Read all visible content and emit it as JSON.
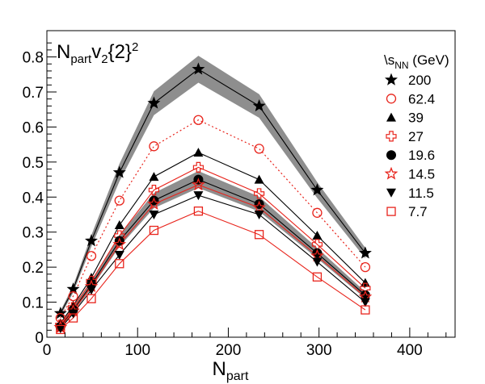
{
  "chart_data": {
    "type": "line",
    "title": "N_part v_2{2}^2",
    "xlabel": "N_part",
    "ylabel": "",
    "xlim": [
      0,
      450
    ],
    "ylim": [
      0,
      0.875
    ],
    "x_ticks": [
      0,
      100,
      200,
      300,
      400
    ],
    "y_ticks": [
      0,
      0.1,
      0.2,
      0.3,
      0.4,
      0.5,
      0.6,
      0.7,
      0.8
    ],
    "x_tick_labels": [
      "0",
      "100",
      "200",
      "300",
      "400"
    ],
    "y_tick_labels": [
      "0",
      "0.1",
      "0.2",
      "0.3",
      "0.4",
      "0.5",
      "0.6",
      "0.7",
      "0.8"
    ],
    "grid": false,
    "legend_title": "\\s_NN (GeV)",
    "legend_position": "top-right",
    "x": [
      15,
      29,
      49,
      80,
      118,
      167,
      234,
      298,
      351
    ],
    "series": [
      {
        "name": "200",
        "color": "#000000",
        "marker": "star-filled",
        "line": "solid",
        "band": true,
        "values": [
          0.068,
          0.137,
          0.275,
          0.47,
          0.668,
          0.765,
          0.66,
          0.42,
          0.24
        ]
      },
      {
        "name": "62.4",
        "color": "#e8241c",
        "marker": "circle-open",
        "line": "dotted",
        "band": false,
        "values": [
          0.055,
          0.117,
          0.232,
          0.39,
          0.545,
          0.62,
          0.538,
          0.355,
          0.2
        ]
      },
      {
        "name": "39",
        "color": "#000000",
        "marker": "triangle-up-filled",
        "line": "solid",
        "band": false,
        "values": [
          0.04,
          0.09,
          0.17,
          0.32,
          0.458,
          0.527,
          0.45,
          0.29,
          0.155
        ]
      },
      {
        "name": "27",
        "color": "#e8241c",
        "marker": "cross-open",
        "line": "solid",
        "band": false,
        "values": [
          0.035,
          0.085,
          0.16,
          0.29,
          0.42,
          0.485,
          0.41,
          0.265,
          0.14
        ]
      },
      {
        "name": "19.6",
        "color": "#000000",
        "marker": "circle-filled",
        "line": "solid",
        "band": true,
        "values": [
          0.03,
          0.078,
          0.15,
          0.275,
          0.39,
          0.45,
          0.38,
          0.24,
          0.12
        ]
      },
      {
        "name": "14.5",
        "color": "#e8241c",
        "marker": "star-open",
        "line": "solid",
        "band": false,
        "values": [
          0.028,
          0.075,
          0.145,
          0.265,
          0.38,
          0.435,
          0.37,
          0.232,
          0.115
        ]
      },
      {
        "name": "11.5",
        "color": "#000000",
        "marker": "triangle-down-filled",
        "line": "solid",
        "band": false,
        "values": [
          0.025,
          0.068,
          0.135,
          0.235,
          0.35,
          0.405,
          0.35,
          0.215,
          0.1
        ]
      },
      {
        "name": "7.7",
        "color": "#e8241c",
        "marker": "square-open",
        "line": "solid",
        "band": false,
        "values": [
          0.022,
          0.055,
          0.11,
          0.21,
          0.305,
          0.36,
          0.293,
          0.172,
          0.078
        ]
      }
    ]
  }
}
